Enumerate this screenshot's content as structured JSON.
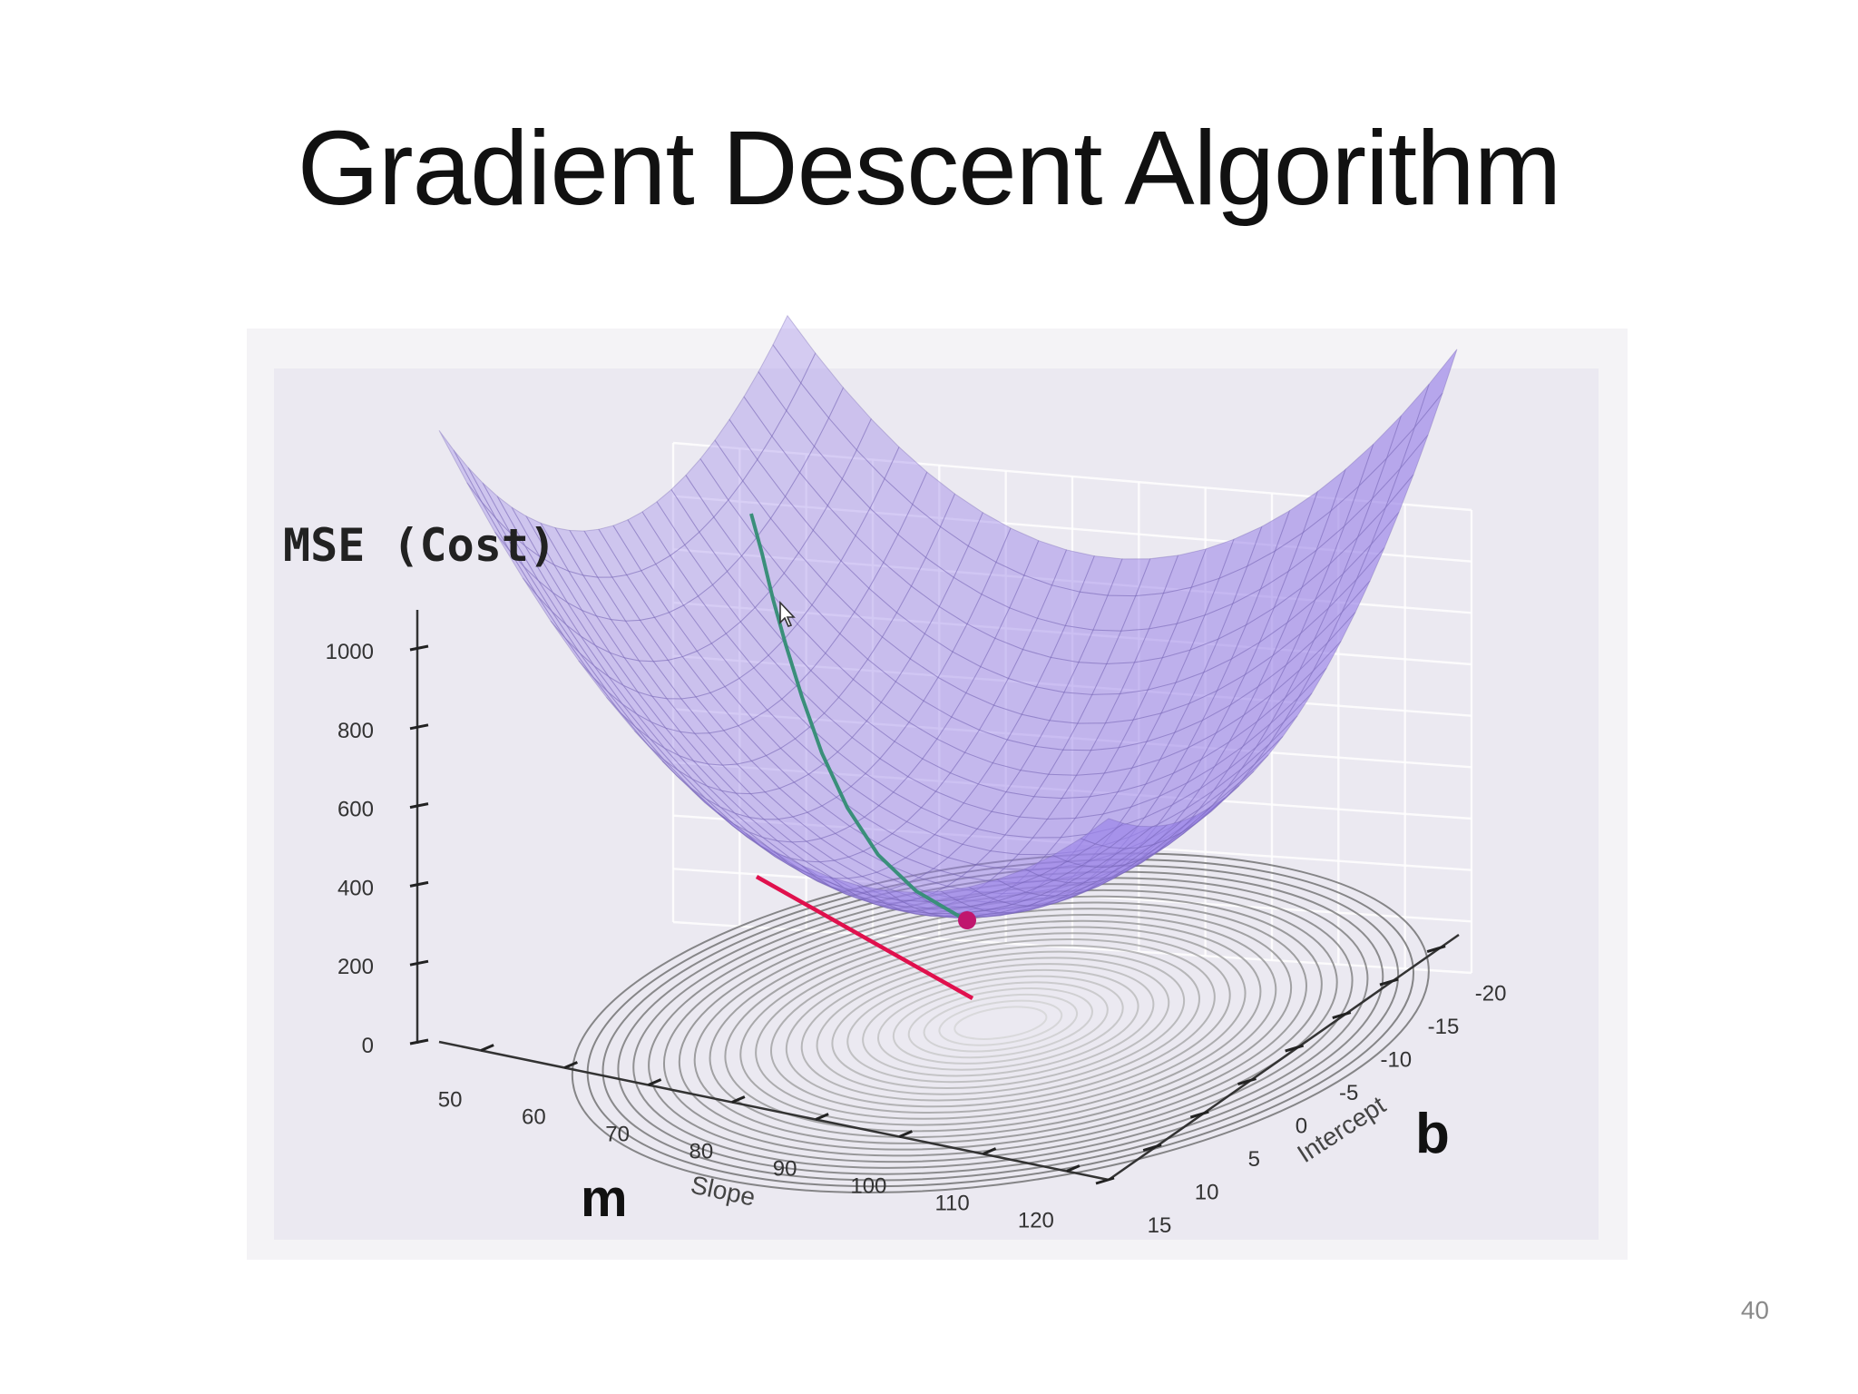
{
  "slide": {
    "title": "Gradient Descent Algorithm",
    "page_number": "40"
  },
  "chart_data": {
    "type": "surface3d",
    "zlabel": "MSE (Cost)",
    "xlabel": "Slope",
    "xlabel_letter": "m",
    "ylabel": "Intercept",
    "ylabel_letter": "b",
    "x_ticks": [
      "50",
      "60",
      "70",
      "80",
      "90",
      "100",
      "110",
      "120"
    ],
    "y_ticks": [
      "15",
      "10",
      "5",
      "0",
      "-5",
      "-10",
      "-15",
      "-20"
    ],
    "z_ticks": [
      "0",
      "200",
      "400",
      "600",
      "800",
      "1000"
    ],
    "xlim": [
      45,
      125
    ],
    "ylim": [
      -22,
      15
    ],
    "zlim": [
      0,
      1100
    ],
    "surface_color": "#9b84e8",
    "descent_path_color": "#3a8f7a",
    "point_color": "#c0166e",
    "tangent_color": "#e0104d"
  },
  "ui": {
    "cursor_icon": "arrow-cursor-icon"
  }
}
